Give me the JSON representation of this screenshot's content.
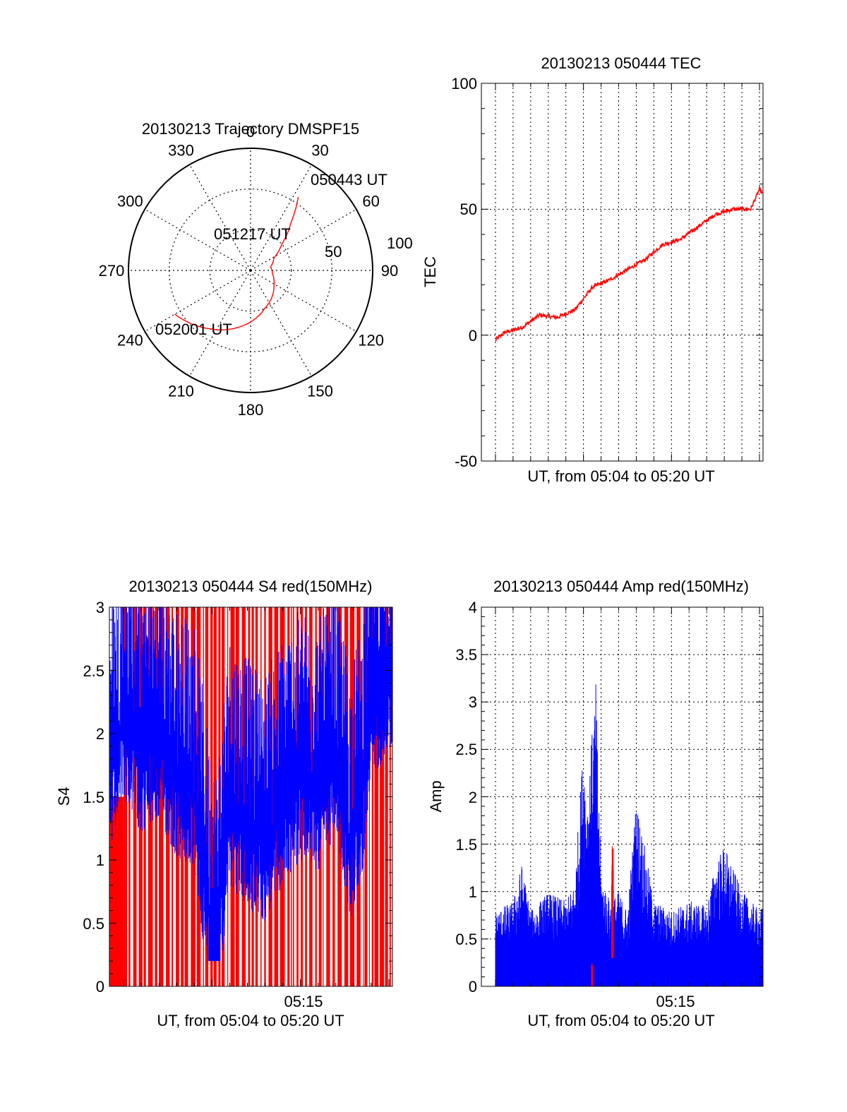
{
  "colors": {
    "red": "#ff0000",
    "blue": "#0000ff",
    "black": "#000000",
    "background": "#ffffff"
  },
  "chart_data": [
    {
      "id": "trajectory",
      "type": "polar",
      "title": "20130213 Trajectory DMSPF15",
      "angle_labels": [
        "0",
        "30",
        "60",
        "90",
        "120",
        "150",
        "180",
        "210",
        "240",
        "270",
        "300",
        "330"
      ],
      "radius_labels": [
        "50",
        "100"
      ],
      "rmax": 100,
      "grid": true,
      "series": [
        {
          "color": "#ff0000",
          "azimuth": [
            33,
            40,
            50,
            62,
            80,
            100,
            125,
            160,
            190,
            215,
            240
          ],
          "elevation": [
            17,
            29,
            40,
            47,
            50,
            49,
            46,
            40,
            32,
            25,
            17
          ]
        }
      ],
      "annotations": [
        {
          "text": "050443 UT",
          "azimuth": 33,
          "elevation": 17
        },
        {
          "text": "051217 UT",
          "azimuth": 330,
          "elevation": 72
        },
        {
          "text": "052001 UT",
          "azimuth": 240,
          "elevation": 17
        }
      ]
    },
    {
      "id": "tec",
      "type": "line",
      "title": "20130213 050444 TEC",
      "xlabel": "UT, from 05:04 to 05:20 UT",
      "ylabel": "TEC",
      "xlim_minutes": [
        4.2,
        20.2
      ],
      "ylim": [
        -50,
        100
      ],
      "yticks": [
        "100",
        "50",
        "0",
        "-50"
      ],
      "grid": true,
      "series": [
        {
          "color": "#ff0000",
          "x": [
            5.0,
            5.5,
            6.5,
            7.5,
            8.5,
            9.5,
            10.5,
            11.5,
            12.5,
            13.5,
            14.5,
            15.5,
            16.5,
            17.5,
            18.5,
            19.5,
            20.0,
            20.2
          ],
          "y": [
            -2,
            1,
            3,
            8,
            7,
            10,
            19,
            22,
            26,
            30,
            36,
            38,
            43,
            48,
            50,
            50,
            58,
            56
          ]
        }
      ]
    },
    {
      "id": "s4",
      "type": "bar",
      "title": "20130213 050444 S4 red(150MHz)",
      "xlabel": "UT, from 05:04 to 05:20 UT",
      "ylabel": "S4",
      "xtick_label": "05:15",
      "xtick_minute": 15,
      "xlim_minutes": [
        4.2,
        20.2
      ],
      "ylim": [
        0,
        3
      ],
      "yticks": [
        "3",
        "2.5",
        "2",
        "1.5",
        "1",
        "0.5",
        "0"
      ],
      "grid": false,
      "series": [
        {
          "name": "",
          "color": "#ff0000",
          "x": [
            4.2,
            5,
            6,
            7,
            8,
            9,
            10,
            11,
            12,
            13,
            14,
            15,
            16,
            17,
            18,
            19,
            20,
            20.2
          ],
          "y": [
            3,
            3,
            3,
            3,
            3,
            3,
            3,
            3,
            3,
            3,
            3,
            3,
            3,
            3,
            3,
            3,
            3,
            3
          ]
        },
        {
          "name": "",
          "color": "#0000ff",
          "x": [
            4.2,
            5,
            6,
            7,
            8,
            9,
            9.8,
            10.2,
            11,
            12,
            13,
            14,
            15,
            16,
            17,
            17.8,
            18.5,
            19,
            20,
            20.2
          ],
          "y": [
            1.6,
            2.1,
            1.8,
            1.9,
            1.6,
            1.5,
            0.6,
            0.3,
            1.4,
            1.2,
            1.1,
            1.4,
            1.6,
            1.5,
            1.8,
            1.1,
            1.5,
            2.2,
            2.5,
            2.4
          ]
        }
      ]
    },
    {
      "id": "amp",
      "type": "bar",
      "title": "20130213 050444 Amp red(150MHz)",
      "xlabel": "UT, from 05:04 to 05:20 UT",
      "ylabel": "Amp",
      "xtick_label": "05:15",
      "xtick_minute": 15,
      "xlim_minutes": [
        4.2,
        20.2
      ],
      "ylim": [
        0,
        4
      ],
      "yticks": [
        "4",
        "3.5",
        "3",
        "2.5",
        "2",
        "1.5",
        "1",
        "0.5",
        "0"
      ],
      "grid": true,
      "series": [
        {
          "name": "",
          "color": "#0000ff",
          "x": [
            4.2,
            5,
            6,
            6.5,
            7,
            8,
            9,
            9.5,
            10,
            10.2,
            10.7,
            11,
            11.5,
            12,
            12.5,
            13,
            14,
            15,
            16,
            17,
            17.5,
            18,
            19,
            20,
            20.2
          ],
          "y": [
            0.85,
            0.8,
            0.9,
            1.3,
            0.8,
            1.0,
            0.9,
            1.1,
            2.6,
            2.0,
            3.2,
            1.2,
            0.9,
            1.0,
            0.8,
            2.0,
            0.9,
            0.8,
            0.9,
            0.85,
            1.3,
            1.5,
            1.0,
            0.8,
            0.85
          ]
        },
        {
          "name": "",
          "color": "#ff0000",
          "x": [
            10.45,
            10.5,
            11.6,
            11.7
          ],
          "y": [
            0.2,
            0.25,
            1.5,
            1.3
          ]
        }
      ]
    }
  ]
}
